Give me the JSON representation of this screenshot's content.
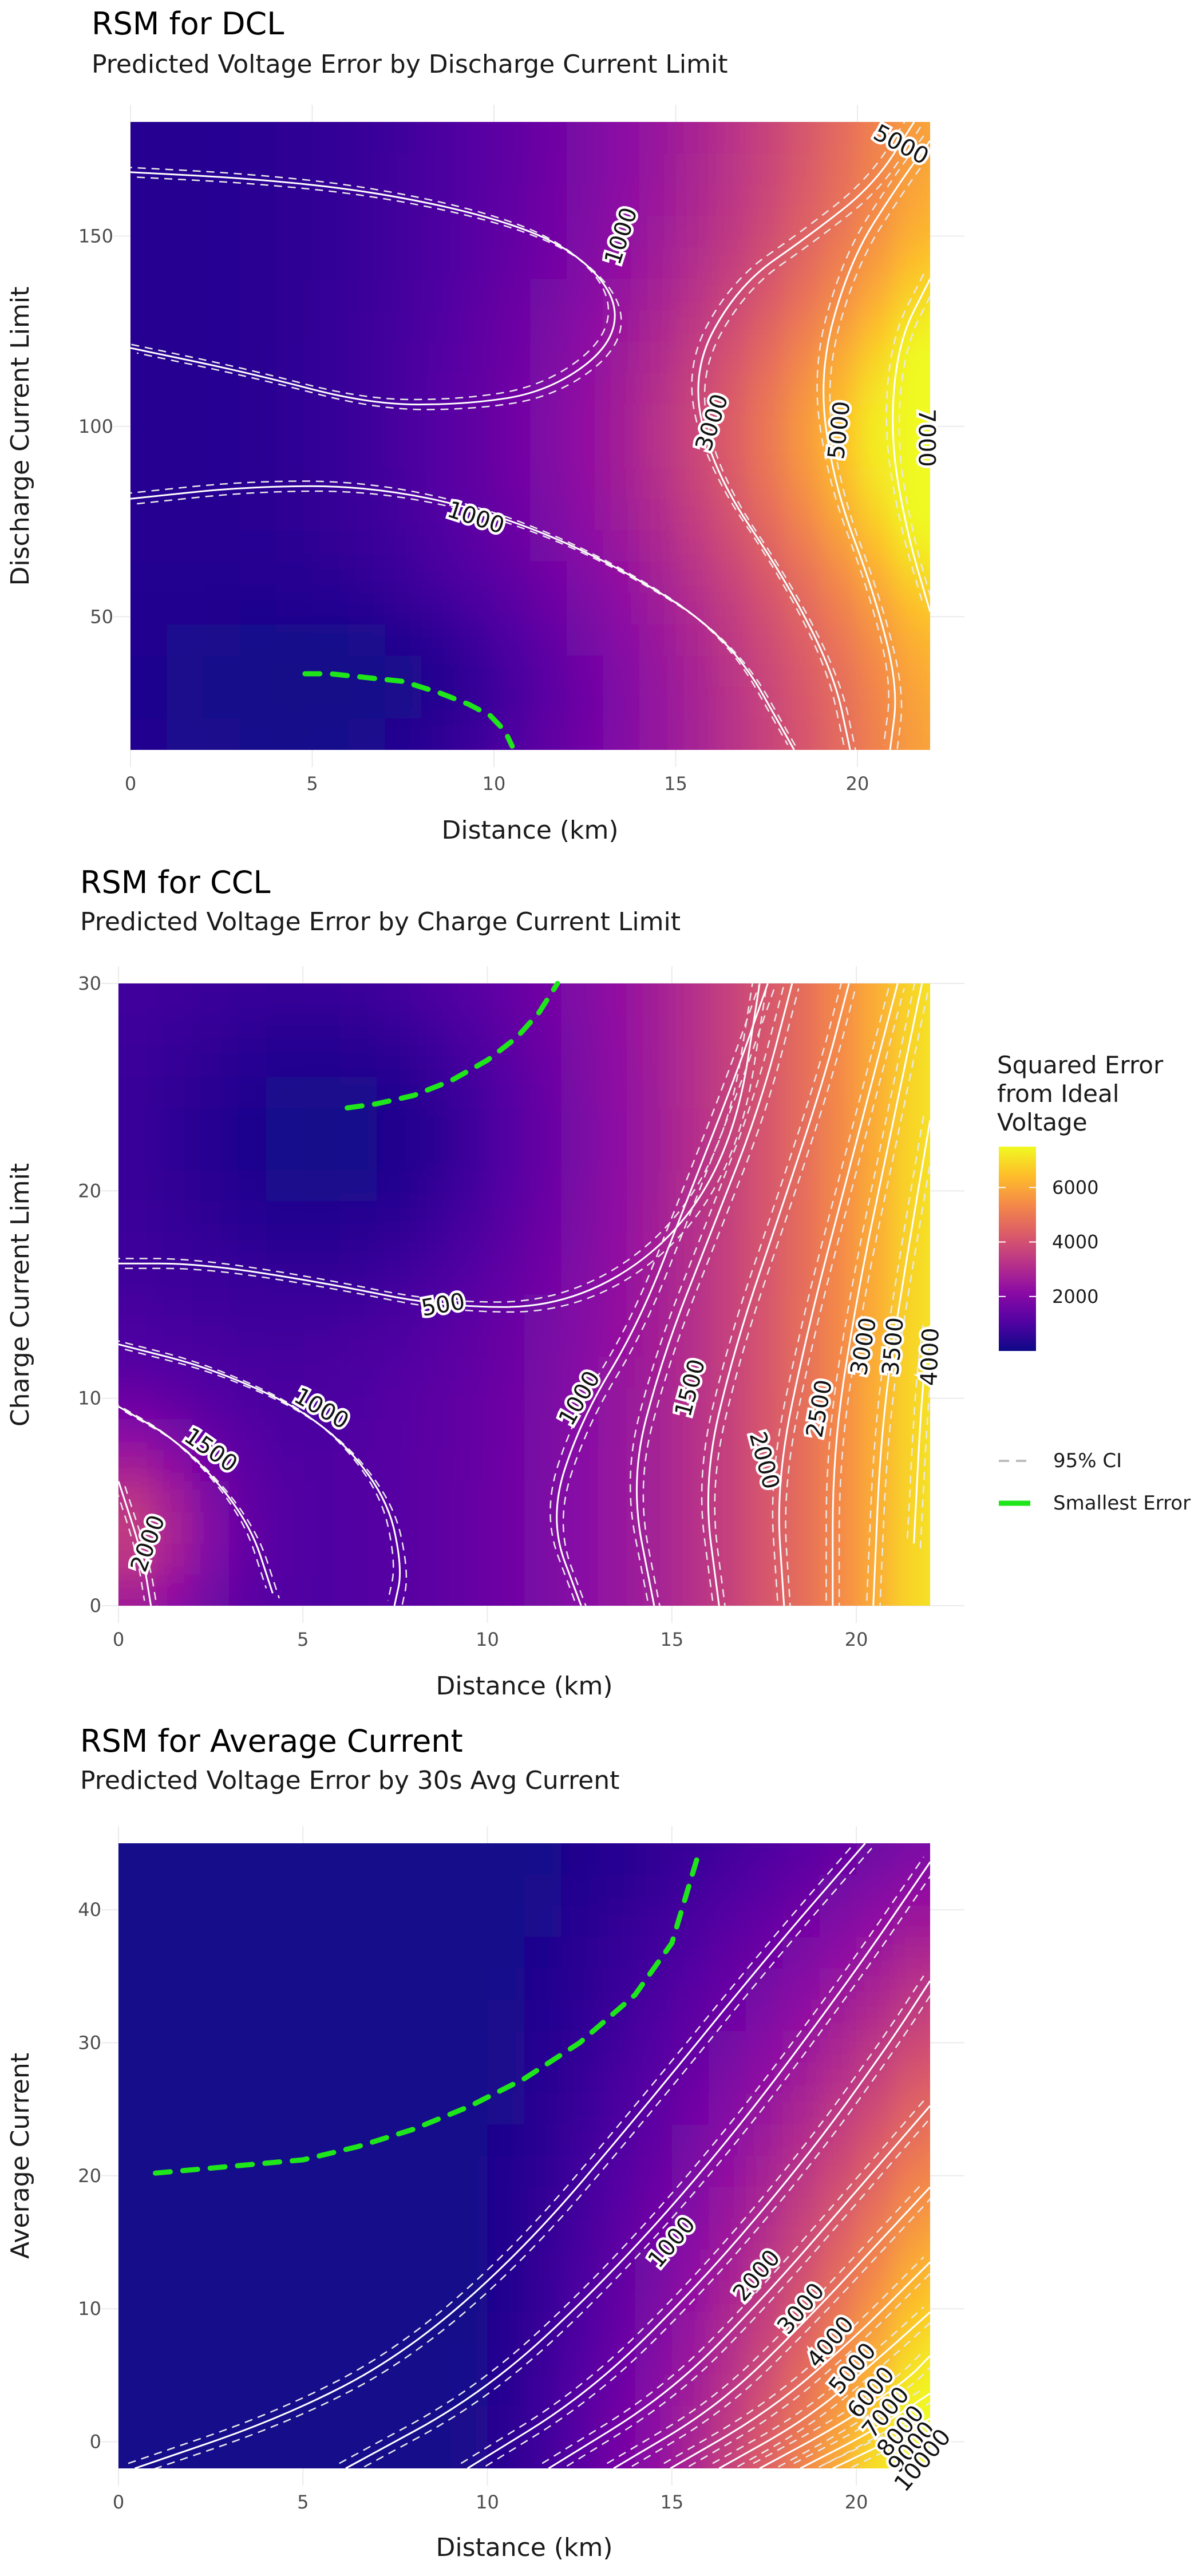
{
  "legend": {
    "colorbar_title": [
      "Squared Error",
      " from Ideal",
      " Voltage"
    ],
    "colorbar_ticks": [
      2000,
      4000,
      6000
    ],
    "colorbar_range": [
      0,
      7500
    ],
    "colormap": [
      "#0d0887",
      "#5302a3",
      "#8b0aa5",
      "#b83289",
      "#db5c68",
      "#f48849",
      "#febd2a",
      "#f0f921"
    ],
    "ci_label": "95% CI",
    "smallest_label": "Smallest Error",
    "contour_color": "#ffffff",
    "smallest_color": "#1fe61a"
  },
  "chart_data": [
    {
      "type": "heatmap",
      "title": "RSM for DCL",
      "subtitle": "Predicted Voltage Error by Discharge Current Limit",
      "xlabel": "Distance (km)",
      "ylabel": "Discharge Current Limit",
      "xlim": [
        0,
        22
      ],
      "ylim": [
        15,
        180
      ],
      "xticks": [
        0,
        5,
        10,
        15,
        20
      ],
      "yticks": [
        50,
        100,
        150
      ],
      "contour_labels": [
        {
          "text": "1000",
          "x": 13.5,
          "y": 150,
          "angle": -72
        },
        {
          "text": "1000",
          "x": 9.5,
          "y": 76,
          "angle": 18
        },
        {
          "text": "3000",
          "x": 16.0,
          "y": 101,
          "angle": -72
        },
        {
          "text": "5000",
          "x": 19.5,
          "y": 99,
          "angle": -84
        },
        {
          "text": "5000",
          "x": 21.2,
          "y": 174,
          "angle": 28
        },
        {
          "text": "7000",
          "x": 21.9,
          "y": 97,
          "angle": 90
        }
      ],
      "smallest_error_path": [
        [
          4.8,
          35
        ],
        [
          5.5,
          35
        ],
        [
          6.5,
          34
        ],
        [
          7.5,
          33
        ],
        [
          8.5,
          30
        ],
        [
          9.3,
          27
        ],
        [
          9.9,
          24
        ],
        [
          10.3,
          20
        ],
        [
          10.5,
          16
        ]
      ]
    },
    {
      "type": "heatmap",
      "title": "RSM for CCL",
      "subtitle": "Predicted Voltage Error by Charge Current Limit",
      "xlabel": "Distance (km)",
      "ylabel": "Charge Current Limit",
      "xlim": [
        0,
        22
      ],
      "ylim": [
        0,
        30
      ],
      "xticks": [
        0,
        5,
        10,
        15,
        20
      ],
      "yticks": [
        0,
        10,
        20,
        30
      ],
      "contour_labels": [
        {
          "text": "500",
          "x": 8.8,
          "y": 14.5,
          "angle": -10
        },
        {
          "text": "1000",
          "x": 5.5,
          "y": 9.5,
          "angle": 30
        },
        {
          "text": "1500",
          "x": 2.5,
          "y": 7.5,
          "angle": 35
        },
        {
          "text": "2000",
          "x": 0.8,
          "y": 3.0,
          "angle": -70
        },
        {
          "text": "1000",
          "x": 12.5,
          "y": 10.0,
          "angle": -60
        },
        {
          "text": "1500",
          "x": 15.5,
          "y": 10.5,
          "angle": -75
        },
        {
          "text": "2000",
          "x": 17.5,
          "y": 7.0,
          "angle": 75
        },
        {
          "text": "2500",
          "x": 19.0,
          "y": 9.5,
          "angle": -80
        },
        {
          "text": "3000",
          "x": 20.2,
          "y": 12.5,
          "angle": -80
        },
        {
          "text": "3500",
          "x": 21.0,
          "y": 12.5,
          "angle": -85
        },
        {
          "text": "4000",
          "x": 22.0,
          "y": 12.0,
          "angle": -88
        }
      ],
      "smallest_error_path": [
        [
          6.2,
          24
        ],
        [
          7.0,
          24.2
        ],
        [
          8.0,
          24.6
        ],
        [
          9.0,
          25.3
        ],
        [
          10.0,
          26.3
        ],
        [
          10.8,
          27.4
        ],
        [
          11.4,
          28.6
        ],
        [
          11.9,
          30
        ]
      ]
    },
    {
      "type": "heatmap",
      "title": "RSM for Average Current",
      "subtitle": "Predicted Voltage Error by 30s Avg Current",
      "xlabel": "Distance (km)",
      "ylabel": "Average Current",
      "xlim": [
        0,
        22
      ],
      "ylim": [
        -2,
        45
      ],
      "xticks": [
        0,
        5,
        10,
        15,
        20
      ],
      "yticks": [
        0,
        10,
        20,
        30,
        40
      ],
      "contour_labels": [
        {
          "text": "1000",
          "x": 15.0,
          "y": 15.0,
          "angle": -50
        },
        {
          "text": "2000",
          "x": 17.3,
          "y": 12.5,
          "angle": -50
        },
        {
          "text": "3000",
          "x": 18.5,
          "y": 10.0,
          "angle": -50
        },
        {
          "text": "4000",
          "x": 19.3,
          "y": 7.5,
          "angle": -50
        },
        {
          "text": "5000",
          "x": 19.9,
          "y": 5.5,
          "angle": -50
        },
        {
          "text": "6000",
          "x": 20.4,
          "y": 3.7,
          "angle": -50
        },
        {
          "text": "7000",
          "x": 20.8,
          "y": 2.2,
          "angle": -50
        },
        {
          "text": "8000",
          "x": 21.2,
          "y": 0.8,
          "angle": -50
        },
        {
          "text": "9000",
          "x": 21.5,
          "y": -0.4,
          "angle": -50
        },
        {
          "text": "10000",
          "x": 21.8,
          "y": -1.4,
          "angle": -50
        }
      ],
      "smallest_error_path": [
        [
          1.0,
          20.2
        ],
        [
          5.0,
          21.2
        ],
        [
          6.5,
          22.2
        ],
        [
          8.0,
          23.5
        ],
        [
          9.5,
          25.2
        ],
        [
          11.0,
          27.3
        ],
        [
          12.5,
          30.0
        ],
        [
          14.0,
          33.6
        ],
        [
          15.0,
          37.5
        ],
        [
          15.7,
          44
        ]
      ]
    }
  ]
}
